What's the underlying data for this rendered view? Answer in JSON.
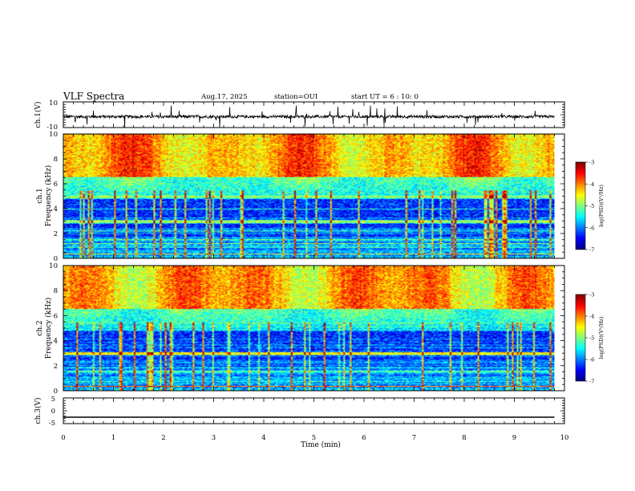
{
  "header": {
    "title": "VLF Spectra",
    "date": "Aug.17, 2025",
    "station": "station=OUI",
    "start": "start  UT =  6 : 10: 0"
  },
  "chart_data": [
    {
      "type": "line",
      "name": "ch.1 waveform",
      "ylabel": "ch.1(V)",
      "ylim": [
        -10,
        10
      ],
      "ytick_labels": [
        "10",
        "-10"
      ],
      "xlim": [
        0,
        10
      ],
      "trace_range_min": [
        0,
        9.8
      ],
      "baseline": -1.5
    },
    {
      "type": "heatmap",
      "name": "ch.1 spectrogram",
      "ylabel": "ch.1",
      "ylabel2": "Frequency (kHz)",
      "ylim": [
        0,
        10
      ],
      "ytick_labels": [
        "0",
        "2",
        "4",
        "6",
        "8",
        "10"
      ],
      "data_range_min": [
        0,
        9.8
      ],
      "colorbar": {
        "label": "log(PSD)(V²/Hz)",
        "range": [
          -7,
          -3
        ],
        "tick_labels": [
          "-7",
          "-6",
          "-5",
          "-4",
          "-3"
        ]
      }
    },
    {
      "type": "heatmap",
      "name": "ch.2 spectrogram",
      "ylabel": "ch.2",
      "ylabel2": "Frequency (kHz)",
      "ylim": [
        0,
        10
      ],
      "ytick_labels": [
        "0",
        "2",
        "4",
        "6",
        "8",
        "10"
      ],
      "data_range_min": [
        0,
        9.8
      ],
      "colorbar": {
        "label": "log(PSD)(V²/Hz)",
        "range": [
          -7,
          -3
        ],
        "tick_labels": [
          "-7",
          "-6",
          "-5",
          "-4",
          "-3"
        ]
      }
    },
    {
      "type": "line",
      "name": "ch.3 waveform",
      "ylabel": "ch.3(V)",
      "ylim": [
        -5,
        5
      ],
      "ytick_labels": [
        "5",
        "0",
        "-5"
      ],
      "xlim": [
        0,
        10
      ],
      "level": -2.5
    }
  ],
  "xaxis": {
    "label": "Time (min)",
    "tick_labels": [
      "0",
      "1",
      "2",
      "3",
      "4",
      "5",
      "6",
      "7",
      "8",
      "9",
      "10"
    ]
  }
}
